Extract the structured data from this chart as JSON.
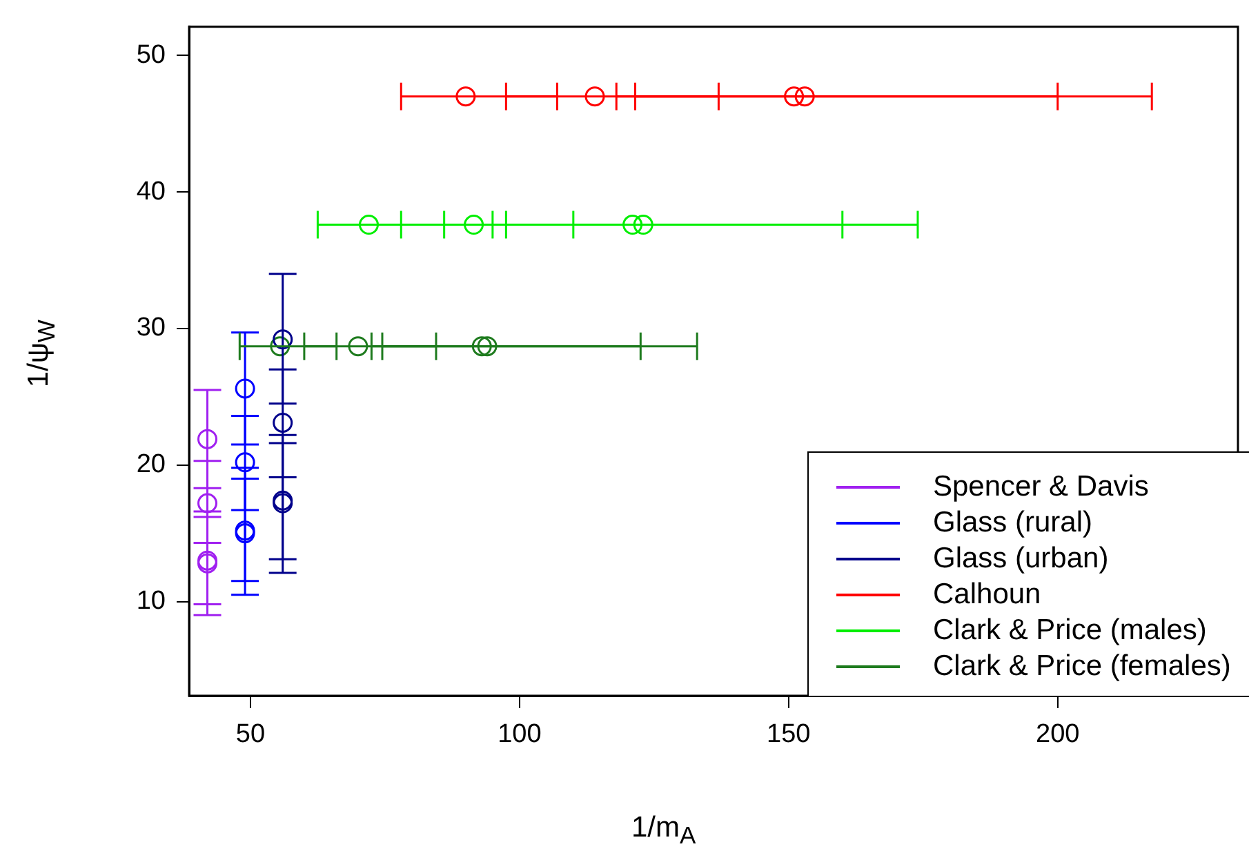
{
  "chart_data": {
    "type": "scatter",
    "xlabel": "1/m$_{A}$",
    "ylabel": "1/ψ$_{W}$",
    "marker": "circle",
    "legend": "bottom right",
    "grid": false,
    "xlim": [
      38.6,
      233.5
    ],
    "xticks": [
      50,
      100,
      150,
      200
    ],
    "ylim": [
      3.1,
      52.1
    ],
    "yticks": [
      10,
      20,
      30,
      40,
      50
    ],
    "series": [
      {
        "name": "Spencer & Davis",
        "color": "#a020f0",
        "x": [
          42,
          42,
          42,
          42
        ],
        "values": [
          21.9,
          17.2,
          13.0,
          12.8
        ],
        "errors": [
          [
            18.3,
            25.5
          ],
          [
            14.3,
            20.3
          ],
          [
            9.8,
            16.2
          ],
          [
            9.0,
            16.6
          ]
        ]
      },
      {
        "name": "Glass (rural)",
        "color": "#0000ff",
        "x": [
          49,
          49,
          49,
          49
        ],
        "values": [
          25.6,
          20.2,
          15.2,
          15.0
        ],
        "errors": [
          [
            21.5,
            29.7
          ],
          [
            16.7,
            23.6
          ],
          [
            11.5,
            19.0
          ],
          [
            10.5,
            19.8
          ]
        ]
      },
      {
        "name": "Glass (urban)",
        "color": "#00008b",
        "x": [
          56,
          56,
          56,
          56
        ],
        "values": [
          29.2,
          23.1,
          17.4,
          17.2
        ],
        "errors": [
          [
            24.5,
            34.0
          ],
          [
            19.1,
            27.0
          ],
          [
            13.1,
            21.6
          ],
          [
            12.1,
            22.2
          ]
        ]
      },
      {
        "name": "Calhoun",
        "color": "#ff0000",
        "x": [
          90,
          114,
          151,
          153
        ],
        "values": [
          47,
          47,
          47,
          47
        ],
        "xerrors": [
          [
            78,
            107
          ],
          [
            97.5,
            137
          ],
          [
            121.5,
            200
          ],
          [
            118,
            217.5
          ]
        ]
      },
      {
        "name": "Clark & Price (males)",
        "color": "#00ee00",
        "x": [
          72,
          91.5,
          121,
          123
        ],
        "values": [
          37.6,
          37.6,
          37.6,
          37.6
        ],
        "xerrors": [
          [
            62.5,
            86
          ],
          [
            78,
            110
          ],
          [
            95,
            160
          ],
          [
            97.5,
            174
          ]
        ]
      },
      {
        "name": "Clark & Price (females)",
        "color": "#1e7b1e",
        "x": [
          55.5,
          70,
          93,
          94
        ],
        "values": [
          28.7,
          28.7,
          28.7,
          28.7
        ],
        "xerrors": [
          [
            48,
            66
          ],
          [
            60,
            84.5
          ],
          [
            72.5,
            122.5
          ],
          [
            74.5,
            133
          ]
        ]
      }
    ]
  }
}
